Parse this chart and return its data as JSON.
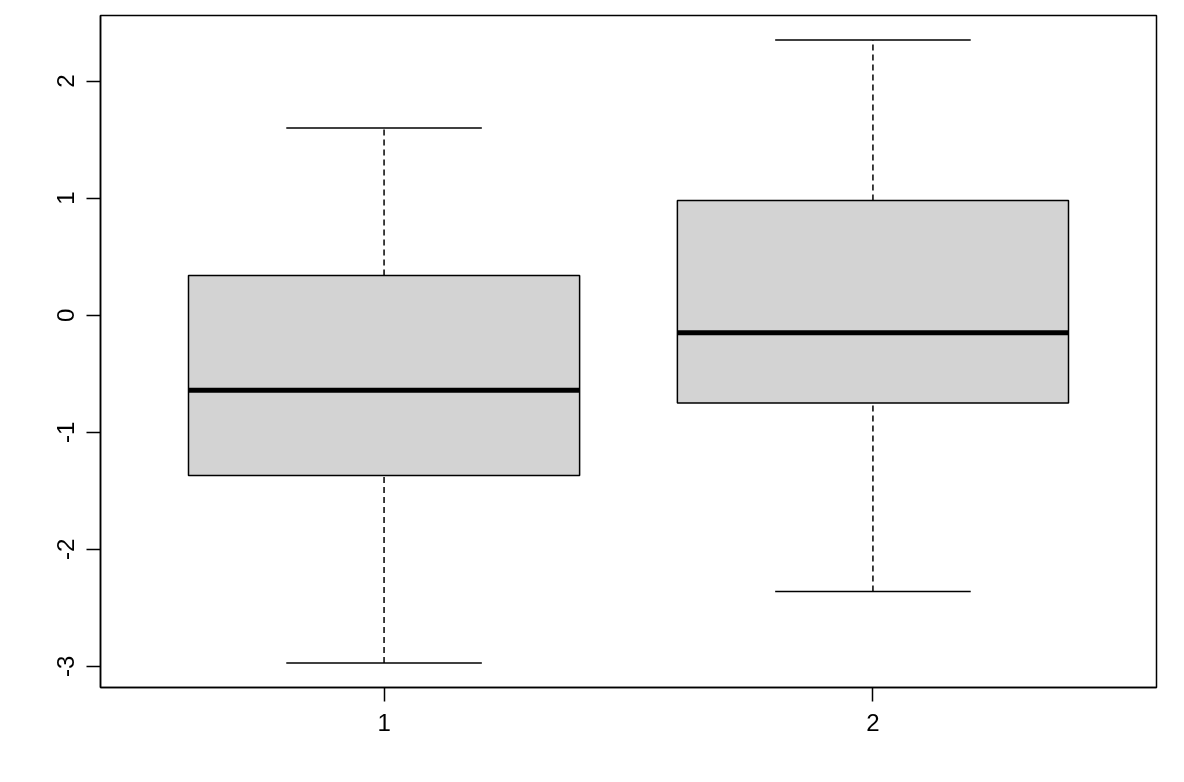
{
  "chart_data": {
    "type": "box",
    "categories": [
      "1",
      "2"
    ],
    "boxes": [
      {
        "low": -2.97,
        "q1": -1.37,
        "median": -0.64,
        "q3": 0.34,
        "high": 1.6
      },
      {
        "low": -2.36,
        "q1": -0.75,
        "median": -0.15,
        "q3": 0.98,
        "high": 2.35
      }
    ],
    "color": "#d3d3d3",
    "ylim": [
      -3.18,
      2.56
    ],
    "yticks": [
      -3,
      -2,
      -1,
      0,
      1,
      2
    ],
    "grid": false
  }
}
